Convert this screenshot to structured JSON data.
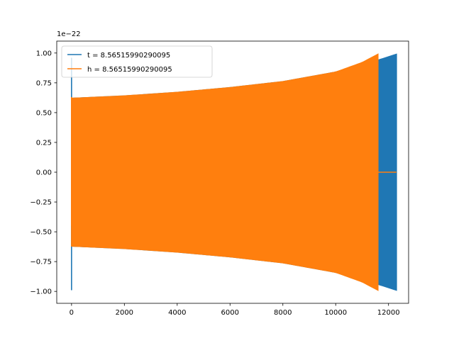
{
  "chart_data": {
    "type": "line",
    "title": "",
    "xlabel": "",
    "ylabel": "",
    "xlim": [
      -560,
      12760
    ],
    "ylim": [
      -1.1,
      1.1
    ],
    "y_multiplier_label": "1e−22",
    "x_ticks": [
      0,
      2000,
      4000,
      6000,
      8000,
      10000,
      12000
    ],
    "x_tick_labels": [
      "0",
      "2000",
      "4000",
      "6000",
      "8000",
      "10000",
      "12000"
    ],
    "y_ticks": [
      1.0,
      0.75,
      0.5,
      0.25,
      0.0,
      -0.25,
      -0.5,
      -0.75,
      -1.0
    ],
    "y_tick_labels": [
      "1.00",
      "0.75",
      "0.50",
      "0.25",
      "0.00",
      "−0.25",
      "−0.50",
      "−0.75",
      "−1.00"
    ],
    "grid": false,
    "legend_position": "upper-left",
    "series": [
      {
        "name": "t = 8.56515990290095",
        "color": "#1f77b4",
        "fill_band": true,
        "envelope": {
          "x": [
            0,
            2000,
            4000,
            6000,
            8000,
            10000,
            11000,
            11600,
            12300
          ],
          "amplitude": [
            0.62,
            0.64,
            0.67,
            0.71,
            0.76,
            0.84,
            0.9,
            0.94,
            0.99
          ]
        },
        "initial_spike": {
          "x": 0,
          "max": 0.96,
          "min": -0.99
        },
        "end_x": 12300
      },
      {
        "name": "h = 8.56515990290095",
        "color": "#ff7f0e",
        "fill_band": true,
        "envelope": {
          "x": [
            0,
            2000,
            4000,
            6000,
            8000,
            10000,
            11000,
            11600
          ],
          "amplitude": [
            0.62,
            0.64,
            0.67,
            0.71,
            0.76,
            0.84,
            0.92,
            0.99
          ]
        },
        "initial_spike": {
          "x": 0,
          "max": 0.63,
          "min": -0.45
        },
        "end_x": 11600,
        "tail": {
          "x": [
            11600,
            12300
          ],
          "y": [
            0,
            0
          ]
        }
      }
    ]
  }
}
